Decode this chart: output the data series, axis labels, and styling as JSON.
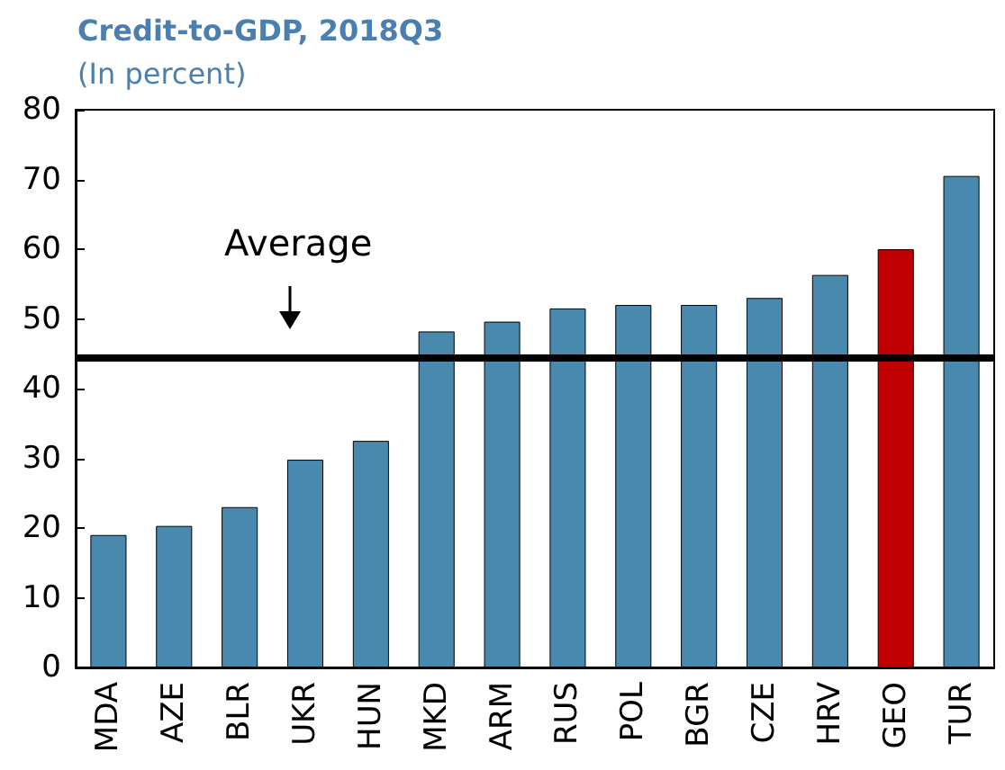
{
  "chart_data": {
    "type": "bar",
    "title": "Credit-to-GDP, 2018Q3",
    "subtitle": "(In percent)",
    "categories": [
      "MDA",
      "AZE",
      "BLR",
      "UKR",
      "HUN",
      "MKD",
      "ARM",
      "RUS",
      "POL",
      "BGR",
      "CZE",
      "HRV",
      "GEO",
      "TUR"
    ],
    "values": [
      19,
      20.3,
      23,
      29.8,
      32.5,
      48.2,
      49.6,
      51.5,
      52,
      52,
      53,
      56.3,
      60,
      70.5
    ],
    "colors": [
      "#4a89ae",
      "#4a89ae",
      "#4a89ae",
      "#4a89ae",
      "#4a89ae",
      "#4a89ae",
      "#4a89ae",
      "#4a89ae",
      "#4a89ae",
      "#4a89ae",
      "#4a89ae",
      "#4a89ae",
      "#c00000",
      "#4a89ae"
    ],
    "ylim": [
      0,
      80
    ],
    "yticks": [
      0,
      10,
      20,
      30,
      40,
      50,
      60,
      70,
      80
    ],
    "grid": false,
    "ref_lines": [
      {
        "axis": "y",
        "value": 44.4,
        "label": "Average",
        "color": "#000000"
      }
    ]
  }
}
